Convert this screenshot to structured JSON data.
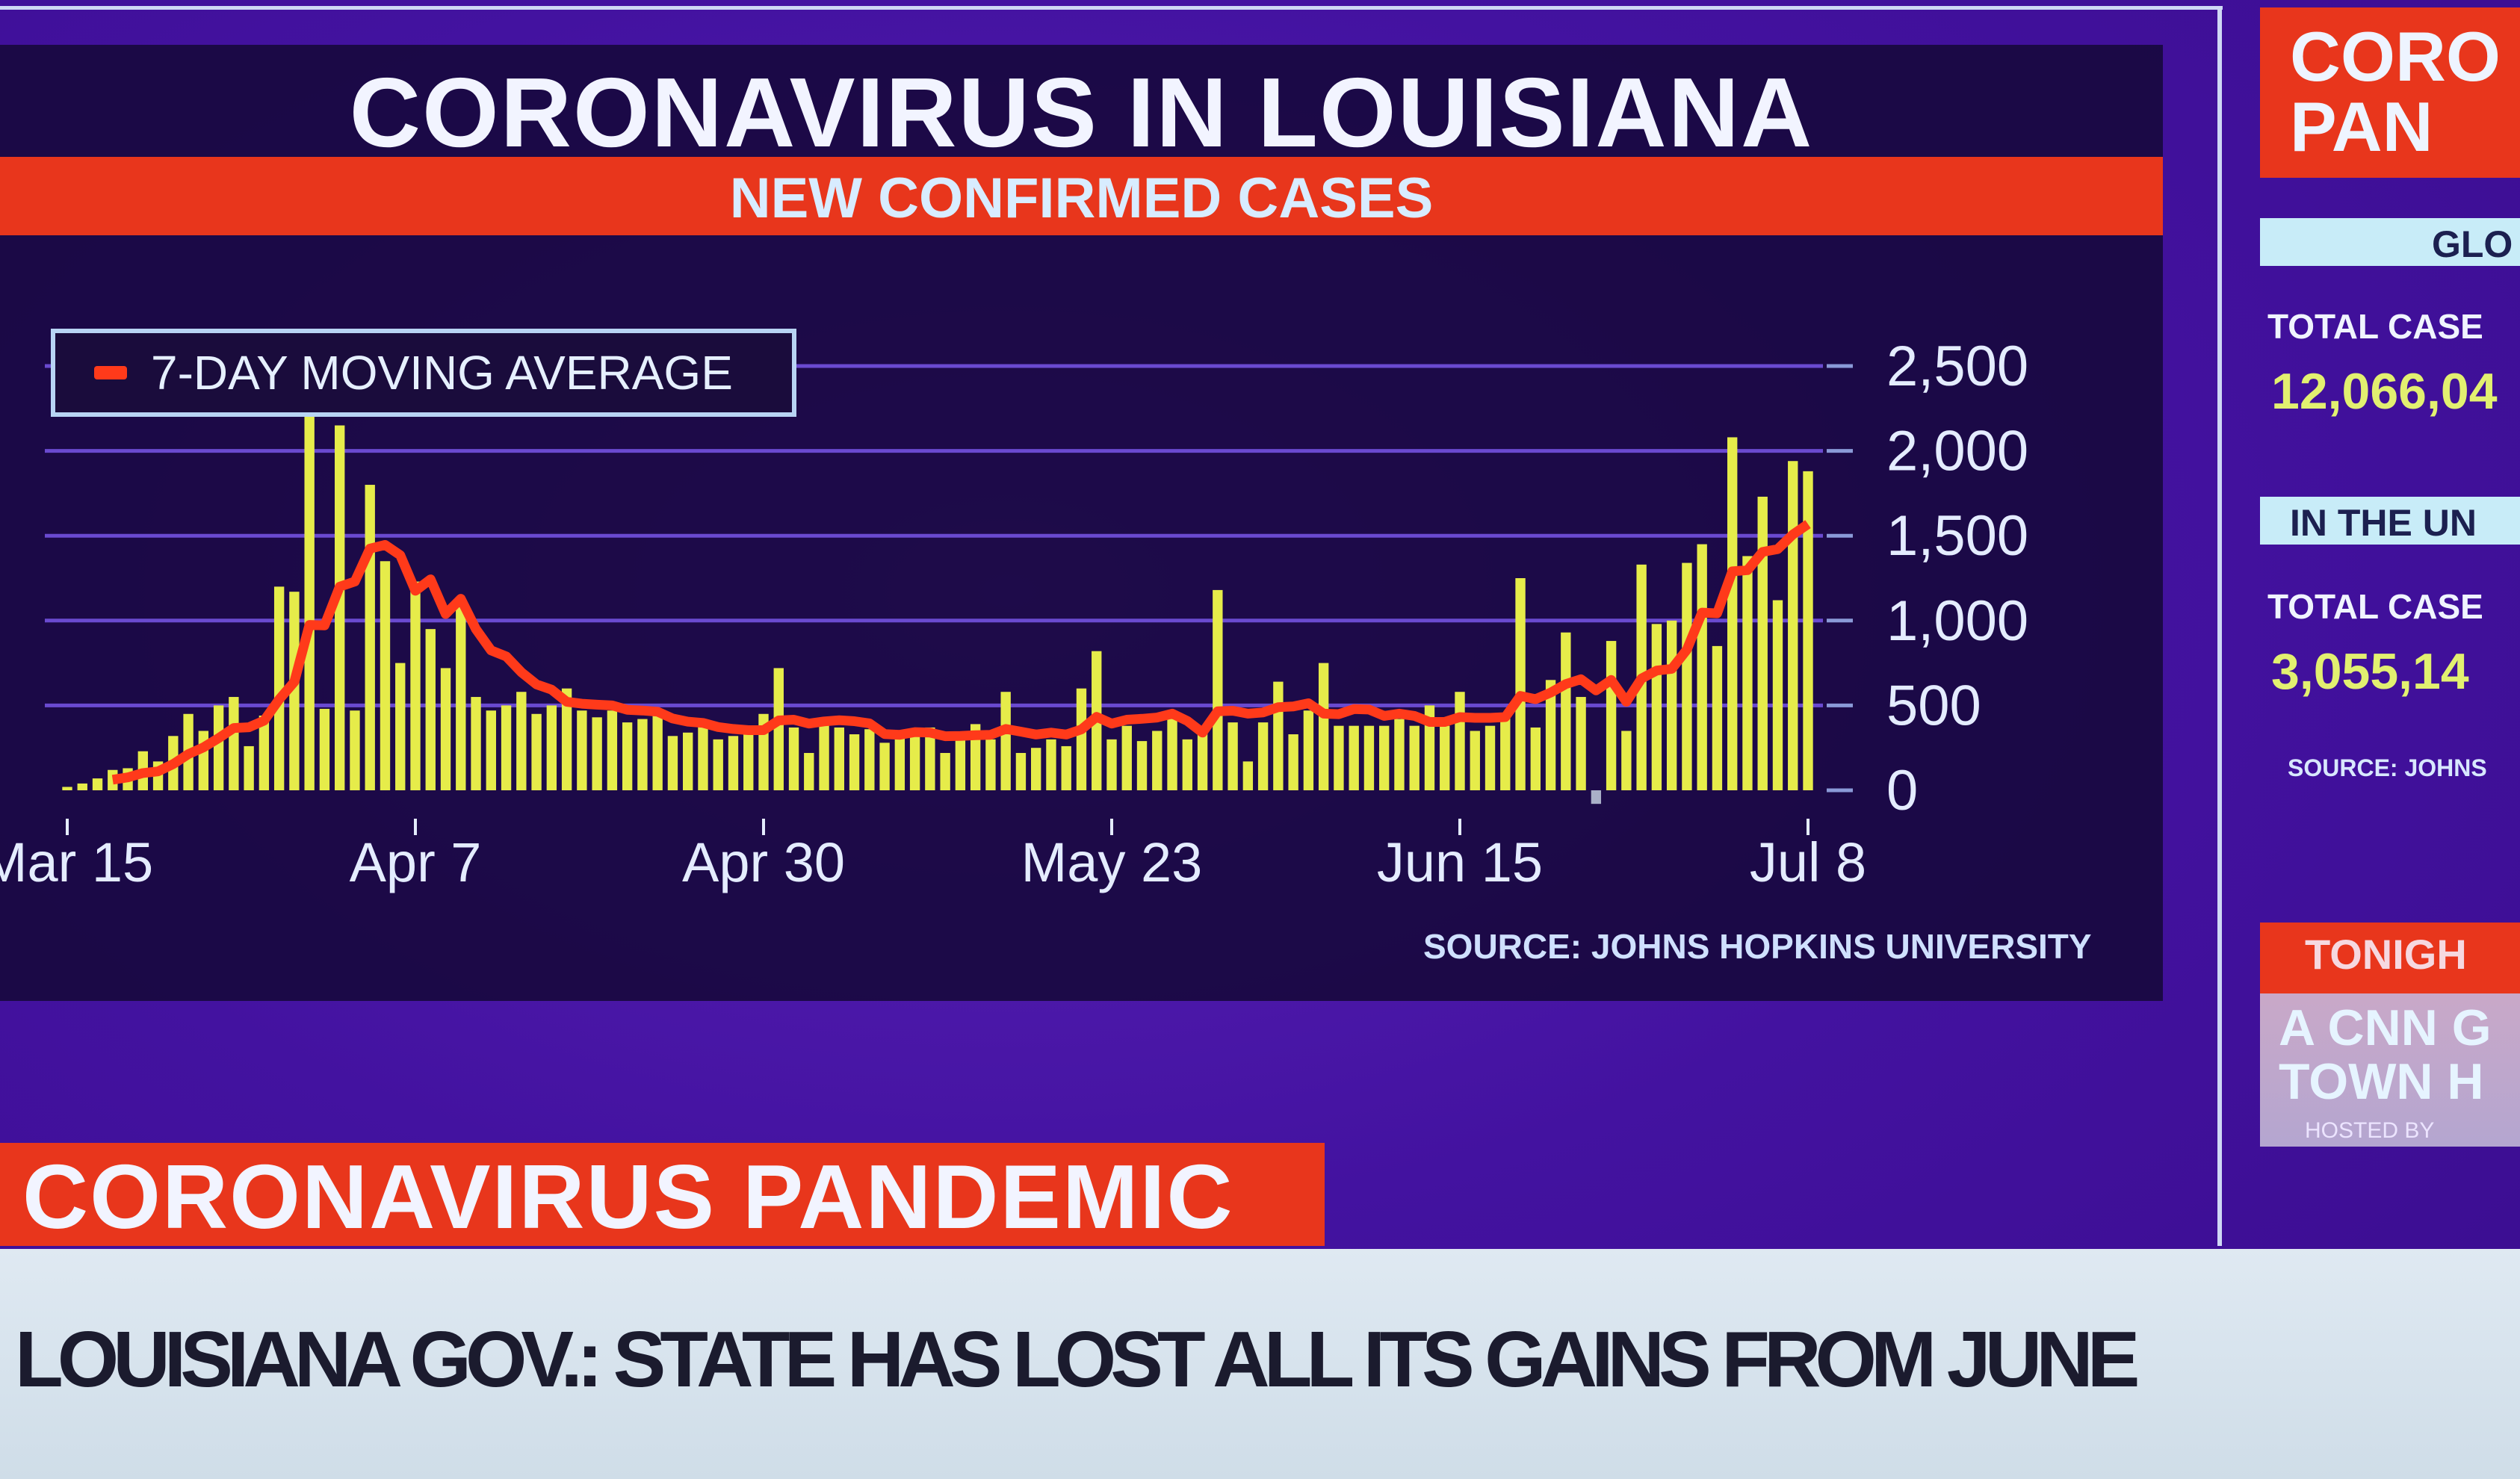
{
  "header": {
    "title": "CORONAVIRUS IN LOUISIANA",
    "subtitle": "NEW CONFIRMED CASES"
  },
  "legend": {
    "label": "7-DAY MOVING AVERAGE"
  },
  "source": "SOURCE: JOHNS HOPKINS UNIVERSITY",
  "colors": {
    "bar": "#e6ec4a",
    "line": "#ff3a1a",
    "accent": "#e8361c",
    "panel": "#16083a"
  },
  "chart_data": {
    "type": "bar",
    "title": "CORONAVIRUS IN LOUISIANA — NEW CONFIRMED CASES",
    "x_start": "Mar 15",
    "x_end": "Jul 8",
    "x_tick_labels": [
      "Mar 15",
      "Apr 7",
      "Apr 30",
      "May 23",
      "Jun 15",
      "Jul 8"
    ],
    "x_tick_day_index": [
      0,
      23,
      46,
      69,
      92,
      115
    ],
    "y_tick_labels": [
      "2,500",
      "2,000",
      "1,500",
      "1,000",
      "500",
      "0"
    ],
    "y_ticks": [
      2500,
      2000,
      1500,
      1000,
      500,
      0
    ],
    "ylim": [
      0,
      2500
    ],
    "grid": true,
    "legend_position": "top-left",
    "series": [
      {
        "name": "Daily new confirmed cases",
        "type": "bar",
        "values": [
          20,
          40,
          70,
          120,
          130,
          230,
          170,
          320,
          450,
          350,
          500,
          550,
          260,
          440,
          1200,
          1170,
          2700,
          480,
          2150,
          470,
          1800,
          1350,
          750,
          1230,
          950,
          720,
          1100,
          550,
          470,
          500,
          580,
          450,
          500,
          600,
          470,
          430,
          470,
          400,
          420,
          450,
          320,
          340,
          380,
          300,
          320,
          370,
          450,
          720,
          370,
          220,
          390,
          370,
          330,
          360,
          280,
          340,
          330,
          370,
          220,
          340,
          390,
          300,
          580,
          220,
          250,
          300,
          260,
          600,
          820,
          300,
          380,
          290,
          350,
          420,
          300,
          340,
          1180,
          400,
          170,
          400,
          640,
          330,
          470,
          750,
          380,
          380,
          380,
          380,
          420,
          380,
          500,
          380,
          580,
          350,
          380,
          450,
          1250,
          370,
          650,
          930,
          550,
          -80,
          880,
          350,
          1330,
          980,
          1000,
          1340,
          1450,
          850,
          2080,
          1380,
          1730,
          1120,
          1940,
          1880
        ]
      },
      {
        "name": "7-DAY MOVING AVERAGE",
        "type": "line",
        "derived": "trailing 7-day mean of daily cases"
      }
    ]
  },
  "ticker": {
    "label": "CORONAVIRUS PANDEMIC",
    "headline": "LOUISIANA GOV.: STATE HAS LOST ALL ITS GAINS FROM JUNE"
  },
  "right_panel": {
    "title_line1": "CORO",
    "title_line2": "PAN",
    "global_label": "GLO",
    "global_total_label": "TOTAL CASE",
    "global_total": "12,066,04",
    "us_label": "IN THE UN",
    "us_total_label": "TOTAL CASE",
    "us_total": "3,055,14",
    "source": "SOURCE: JOHNS",
    "promo_top": "TONIGH",
    "promo_line1": "A CNN G",
    "promo_line2": "TOWN H",
    "promo_small": "HOSTED BY"
  }
}
